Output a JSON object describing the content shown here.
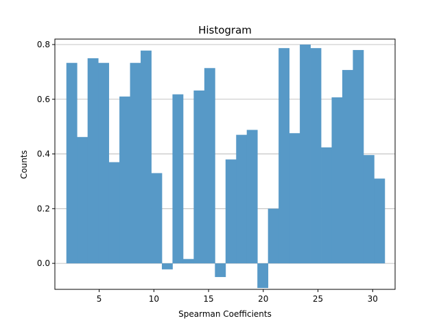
{
  "chart_data": {
    "type": "bar",
    "title": "Histogram",
    "xlabel": "Spearman Coefficients",
    "ylabel": "Counts",
    "xlim": [
      0.95,
      32.05
    ],
    "ylim": [
      -0.095,
      0.82
    ],
    "xticks": [
      5,
      10,
      15,
      20,
      25,
      30
    ],
    "yticks": [
      0.0,
      0.2,
      0.4,
      0.6,
      0.8
    ],
    "ytick_labels": [
      "0.0",
      "0.2",
      "0.4",
      "0.6",
      "0.8"
    ],
    "grid": "y",
    "bar_color": "#5799c7",
    "grid_color": "#b0b0b0",
    "bin_start": 2,
    "bin_width": 0.97,
    "values": [
      0.733,
      0.462,
      0.75,
      0.733,
      0.37,
      0.61,
      0.733,
      0.778,
      0.33,
      -0.022,
      0.618,
      0.016,
      0.632,
      0.714,
      -0.05,
      0.38,
      0.47,
      0.488,
      -0.09,
      0.2,
      0.787,
      0.476,
      0.8,
      0.787,
      0.424,
      0.607,
      0.707,
      0.78,
      0.396,
      0.31
    ]
  }
}
